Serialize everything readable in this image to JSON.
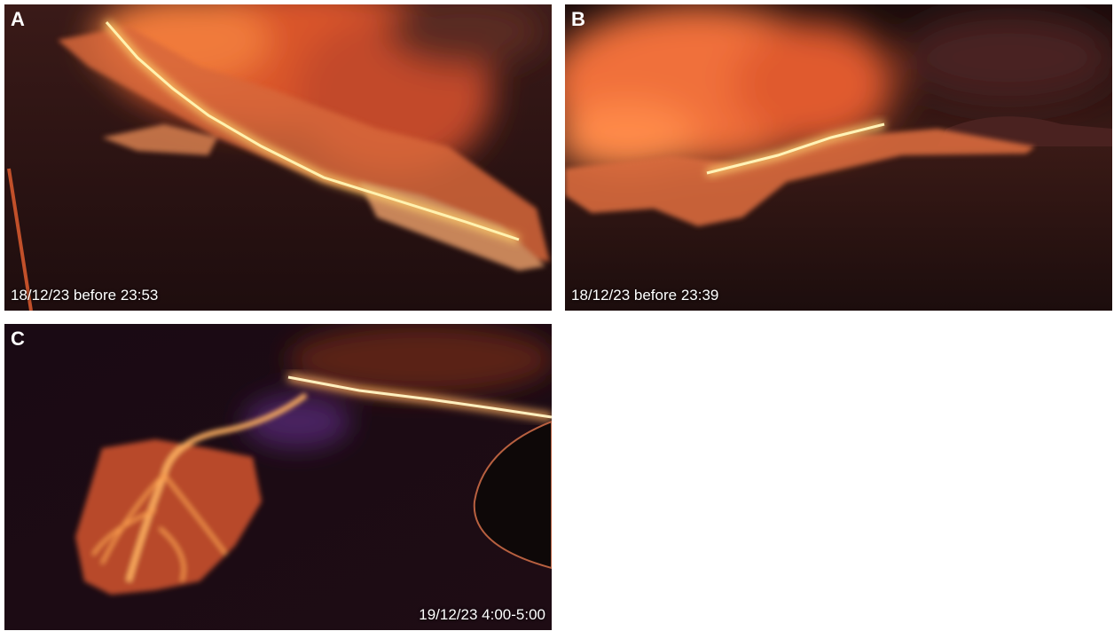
{
  "panels": [
    {
      "letter": "A",
      "caption": "18/12/23 before 23:53"
    },
    {
      "letter": "B",
      "caption": "18/12/23 before 23:39"
    },
    {
      "letter": "C",
      "caption": "19/12/23 4:00-5:00"
    }
  ]
}
